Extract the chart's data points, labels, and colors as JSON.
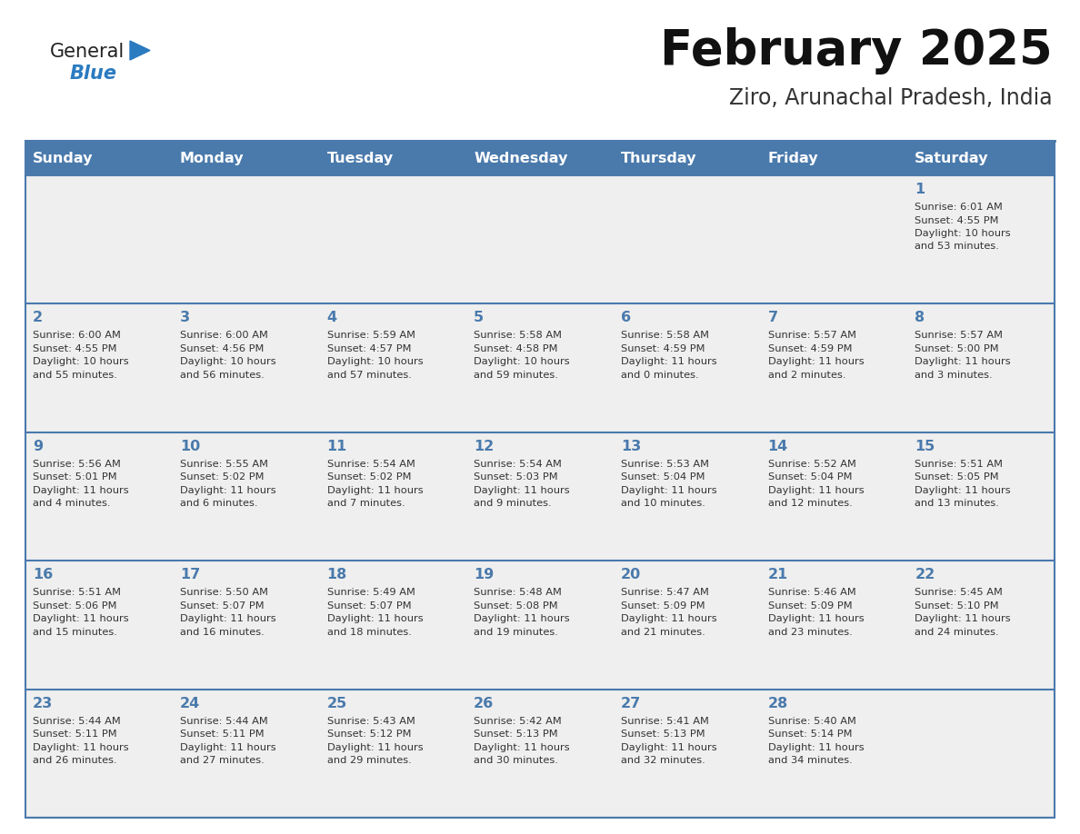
{
  "title": "February 2025",
  "subtitle": "Ziro, Arunachal Pradesh, India",
  "days_of_week": [
    "Sunday",
    "Monday",
    "Tuesday",
    "Wednesday",
    "Thursday",
    "Friday",
    "Saturday"
  ],
  "header_bg_color": "#4a7aac",
  "header_text_color": "#ffffff",
  "cell_bg_color": "#f0f0f0",
  "grid_line_color": "#4a7aac",
  "day_number_color": "#4a7aac",
  "text_color": "#333333",
  "title_color": "#111111",
  "subtitle_color": "#333333",
  "logo_black_color": "#1a1a1a",
  "logo_blue_color": "#2a7bc0",
  "weeks": [
    [
      {
        "day": null,
        "info": ""
      },
      {
        "day": null,
        "info": ""
      },
      {
        "day": null,
        "info": ""
      },
      {
        "day": null,
        "info": ""
      },
      {
        "day": null,
        "info": ""
      },
      {
        "day": null,
        "info": ""
      },
      {
        "day": 1,
        "info": "Sunrise: 6:01 AM\nSunset: 4:55 PM\nDaylight: 10 hours\nand 53 minutes."
      }
    ],
    [
      {
        "day": 2,
        "info": "Sunrise: 6:00 AM\nSunset: 4:55 PM\nDaylight: 10 hours\nand 55 minutes."
      },
      {
        "day": 3,
        "info": "Sunrise: 6:00 AM\nSunset: 4:56 PM\nDaylight: 10 hours\nand 56 minutes."
      },
      {
        "day": 4,
        "info": "Sunrise: 5:59 AM\nSunset: 4:57 PM\nDaylight: 10 hours\nand 57 minutes."
      },
      {
        "day": 5,
        "info": "Sunrise: 5:58 AM\nSunset: 4:58 PM\nDaylight: 10 hours\nand 59 minutes."
      },
      {
        "day": 6,
        "info": "Sunrise: 5:58 AM\nSunset: 4:59 PM\nDaylight: 11 hours\nand 0 minutes."
      },
      {
        "day": 7,
        "info": "Sunrise: 5:57 AM\nSunset: 4:59 PM\nDaylight: 11 hours\nand 2 minutes."
      },
      {
        "day": 8,
        "info": "Sunrise: 5:57 AM\nSunset: 5:00 PM\nDaylight: 11 hours\nand 3 minutes."
      }
    ],
    [
      {
        "day": 9,
        "info": "Sunrise: 5:56 AM\nSunset: 5:01 PM\nDaylight: 11 hours\nand 4 minutes."
      },
      {
        "day": 10,
        "info": "Sunrise: 5:55 AM\nSunset: 5:02 PM\nDaylight: 11 hours\nand 6 minutes."
      },
      {
        "day": 11,
        "info": "Sunrise: 5:54 AM\nSunset: 5:02 PM\nDaylight: 11 hours\nand 7 minutes."
      },
      {
        "day": 12,
        "info": "Sunrise: 5:54 AM\nSunset: 5:03 PM\nDaylight: 11 hours\nand 9 minutes."
      },
      {
        "day": 13,
        "info": "Sunrise: 5:53 AM\nSunset: 5:04 PM\nDaylight: 11 hours\nand 10 minutes."
      },
      {
        "day": 14,
        "info": "Sunrise: 5:52 AM\nSunset: 5:04 PM\nDaylight: 11 hours\nand 12 minutes."
      },
      {
        "day": 15,
        "info": "Sunrise: 5:51 AM\nSunset: 5:05 PM\nDaylight: 11 hours\nand 13 minutes."
      }
    ],
    [
      {
        "day": 16,
        "info": "Sunrise: 5:51 AM\nSunset: 5:06 PM\nDaylight: 11 hours\nand 15 minutes."
      },
      {
        "day": 17,
        "info": "Sunrise: 5:50 AM\nSunset: 5:07 PM\nDaylight: 11 hours\nand 16 minutes."
      },
      {
        "day": 18,
        "info": "Sunrise: 5:49 AM\nSunset: 5:07 PM\nDaylight: 11 hours\nand 18 minutes."
      },
      {
        "day": 19,
        "info": "Sunrise: 5:48 AM\nSunset: 5:08 PM\nDaylight: 11 hours\nand 19 minutes."
      },
      {
        "day": 20,
        "info": "Sunrise: 5:47 AM\nSunset: 5:09 PM\nDaylight: 11 hours\nand 21 minutes."
      },
      {
        "day": 21,
        "info": "Sunrise: 5:46 AM\nSunset: 5:09 PM\nDaylight: 11 hours\nand 23 minutes."
      },
      {
        "day": 22,
        "info": "Sunrise: 5:45 AM\nSunset: 5:10 PM\nDaylight: 11 hours\nand 24 minutes."
      }
    ],
    [
      {
        "day": 23,
        "info": "Sunrise: 5:44 AM\nSunset: 5:11 PM\nDaylight: 11 hours\nand 26 minutes."
      },
      {
        "day": 24,
        "info": "Sunrise: 5:44 AM\nSunset: 5:11 PM\nDaylight: 11 hours\nand 27 minutes."
      },
      {
        "day": 25,
        "info": "Sunrise: 5:43 AM\nSunset: 5:12 PM\nDaylight: 11 hours\nand 29 minutes."
      },
      {
        "day": 26,
        "info": "Sunrise: 5:42 AM\nSunset: 5:13 PM\nDaylight: 11 hours\nand 30 minutes."
      },
      {
        "day": 27,
        "info": "Sunrise: 5:41 AM\nSunset: 5:13 PM\nDaylight: 11 hours\nand 32 minutes."
      },
      {
        "day": 28,
        "info": "Sunrise: 5:40 AM\nSunset: 5:14 PM\nDaylight: 11 hours\nand 34 minutes."
      },
      {
        "day": null,
        "info": ""
      }
    ]
  ]
}
